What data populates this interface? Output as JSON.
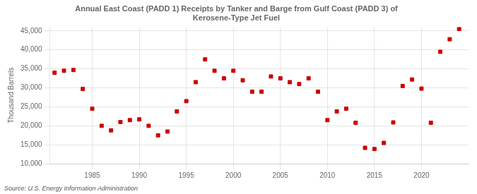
{
  "chart_data": {
    "type": "scatter",
    "title": "Annual East Coast (PADD 1) Receipts by Tanker and Barge from Gulf Coast (PADD 3) of\nKerosene-Type Jet Fuel",
    "ylabel": "Thousand Barrels",
    "annotations": [
      "Source: U.S. Energy Information Administration"
    ],
    "x": [
      1981,
      1982,
      1983,
      1984,
      1985,
      1986,
      1987,
      1988,
      1989,
      1990,
      1991,
      1992,
      1993,
      1994,
      1995,
      1996,
      1997,
      1998,
      1999,
      2000,
      2001,
      2002,
      2003,
      2004,
      2005,
      2006,
      2007,
      2008,
      2009,
      2010,
      2011,
      2012,
      2013,
      2014,
      2015,
      2016,
      2017,
      2018,
      2019,
      2020,
      2021,
      2022,
      2023,
      2024
    ],
    "values": [
      34000,
      34500,
      34700,
      29700,
      24500,
      20000,
      18800,
      21000,
      21500,
      21700,
      20000,
      17500,
      18500,
      23800,
      26500,
      31500,
      37500,
      34500,
      32500,
      34500,
      32000,
      29000,
      29000,
      33000,
      32500,
      31500,
      31000,
      32500,
      29000,
      21500,
      23800,
      24500,
      20800,
      14200,
      13900,
      15500,
      20900,
      30500,
      32200,
      29800,
      20800,
      39500,
      42800,
      45500
    ],
    "color": "#cc0000",
    "marker": "square",
    "xlim": [
      1980.5,
      2025
    ],
    "xticks": [
      1985,
      1990,
      1995,
      2000,
      2005,
      2010,
      2015,
      2020
    ],
    "ylim": [
      10000,
      46000
    ],
    "yticks": [
      {
        "value": 10000,
        "label": "10,000"
      },
      {
        "value": 15000,
        "label": "15,000"
      },
      {
        "value": 20000,
        "label": "20,000"
      },
      {
        "value": 25000,
        "label": "25,000"
      },
      {
        "value": 30000,
        "label": "30,000"
      },
      {
        "value": 35000,
        "label": "35,000"
      },
      {
        "value": 40000,
        "label": "40,000"
      },
      {
        "value": 45000,
        "label": "45,000"
      }
    ],
    "grid": true
  }
}
